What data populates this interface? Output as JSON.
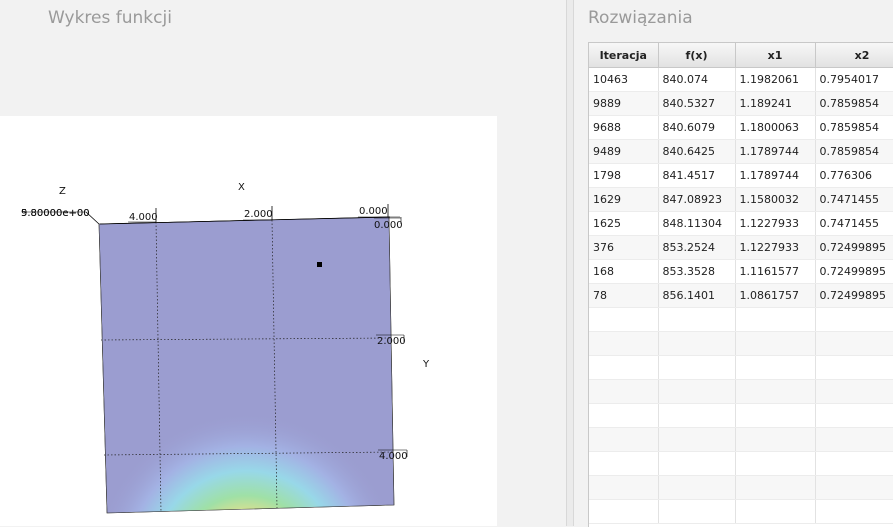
{
  "left_panel": {
    "title": "Wykres funkcji"
  },
  "plot": {
    "z_axis_label": "Z",
    "x_axis_label": "X",
    "y_axis_label": "Y",
    "z_tick": "9.80000e+00",
    "z_tick_overlap": "5.80000e+00",
    "x_ticks": [
      "4.000",
      "2.000",
      "0.000"
    ],
    "y_ticks": [
      "0.000",
      "2.000",
      "4.000"
    ],
    "surface_color": "#9b9dd0"
  },
  "right_panel": {
    "title": "Rozwiązania",
    "columns": [
      "Iteracja",
      "f(x)",
      "x1",
      "x2"
    ],
    "rows": [
      [
        "10463",
        "840.074",
        "1.1982061",
        "0.7954017"
      ],
      [
        "9889",
        "840.5327",
        "1.189241",
        "0.7859854"
      ],
      [
        "9688",
        "840.6079",
        "1.1800063",
        "0.7859854"
      ],
      [
        "9489",
        "840.6425",
        "1.1789744",
        "0.7859854"
      ],
      [
        "1798",
        "841.4517",
        "1.1789744",
        "0.776306"
      ],
      [
        "1629",
        "847.08923",
        "1.1580032",
        "0.7471455"
      ],
      [
        "1625",
        "848.11304",
        "1.1227933",
        "0.7471455"
      ],
      [
        "376",
        "853.2524",
        "1.1227933",
        "0.72499895"
      ],
      [
        "168",
        "853.3528",
        "1.1161577",
        "0.72499895"
      ],
      [
        "78",
        "856.1401",
        "1.0861757",
        "0.72499895"
      ]
    ]
  }
}
